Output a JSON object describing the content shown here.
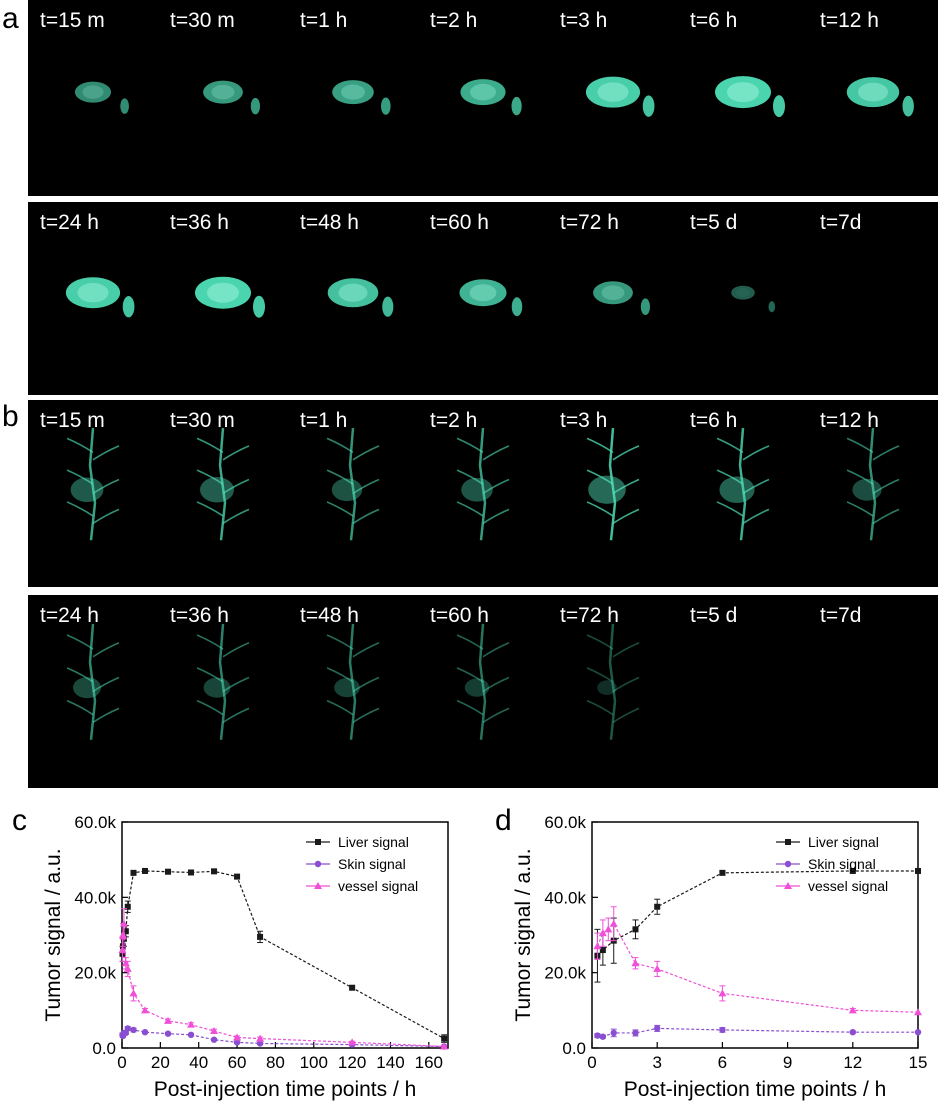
{
  "panels": {
    "a": "a",
    "b": "b",
    "c": "c",
    "d": "d"
  },
  "time_labels": {
    "row1": [
      "t=15 m",
      "t=30 m",
      "t=1 h",
      "t=2 h",
      "t=3 h",
      "t=6 h",
      "t=12 h"
    ],
    "row2": [
      "t=24 h",
      "t=36 h",
      "t=48 h",
      "t=60 h",
      "t=72 h",
      "t=5 d",
      "t=7d"
    ]
  },
  "image_colors": {
    "background": "#000000",
    "fluorescence": "#4fe0b8"
  },
  "fluorescence_levels": {
    "a_row1": [
      0.45,
      0.55,
      0.6,
      0.7,
      0.95,
      1.0,
      0.9
    ],
    "a_row2": [
      0.95,
      1.0,
      0.85,
      0.75,
      0.55,
      0.1,
      0.0
    ],
    "b_row1": [
      0.7,
      0.75,
      0.6,
      0.65,
      0.9,
      0.8,
      0.55
    ],
    "b_row2": [
      0.5,
      0.45,
      0.4,
      0.35,
      0.15,
      0.0,
      0.0
    ]
  },
  "chart_data": [
    {
      "type": "line",
      "panel": "c",
      "xlabel": "Post-injection time points / h",
      "ylabel": "Tumor signal / a.u.",
      "xlim": [
        0,
        170
      ],
      "ylim": [
        0,
        60000
      ],
      "xticks": [
        0,
        20,
        40,
        60,
        80,
        100,
        120,
        140,
        160
      ],
      "yticks": [
        0,
        20000,
        40000,
        60000
      ],
      "ytick_labels": [
        "0.0",
        "20.0k",
        "40.0k",
        "60.0k"
      ],
      "legend_position": "top-right",
      "series": [
        {
          "name": "Liver signal",
          "color": "#1a1a1a",
          "marker": "square",
          "x": [
            0.25,
            0.5,
            1,
            2,
            3,
            6,
            12,
            24,
            36,
            48,
            60,
            72,
            120,
            168
          ],
          "y": [
            25000,
            27000,
            29000,
            31000,
            37500,
            46500,
            47000,
            46800,
            46600,
            46900,
            45500,
            29500,
            16000,
            2500
          ],
          "err": [
            2000,
            2000,
            2000,
            1500,
            1500,
            500,
            400,
            600,
            600,
            500,
            500,
            1500,
            400,
            1000
          ]
        },
        {
          "name": "Skin signal",
          "color": "#8a4fd0",
          "marker": "circle",
          "x": [
            0.25,
            0.5,
            1,
            2,
            3,
            6,
            12,
            24,
            36,
            48,
            60,
            72,
            120,
            168
          ],
          "y": [
            3500,
            3200,
            4000,
            4000,
            5200,
            4800,
            4200,
            3800,
            3500,
            2200,
            1500,
            1200,
            900,
            400
          ],
          "err": [
            500,
            400,
            400,
            400,
            500,
            500,
            300,
            300,
            300,
            300,
            200,
            200,
            200,
            100
          ]
        },
        {
          "name": "vessel signal",
          "color": "#f050d8",
          "marker": "triangle",
          "x": [
            0.25,
            0.5,
            1,
            2,
            3,
            6,
            12,
            24,
            36,
            48,
            60,
            72,
            120,
            168
          ],
          "y": [
            26000,
            30000,
            33000,
            22500,
            21000,
            14500,
            10000,
            7200,
            6200,
            4500,
            2800,
            2500,
            1500,
            400
          ],
          "err": [
            3000,
            3000,
            4000,
            1500,
            2000,
            2000,
            500,
            500,
            500,
            500,
            400,
            400,
            300,
            200
          ]
        }
      ]
    },
    {
      "type": "line",
      "panel": "d",
      "xlabel": "Post-injection time points / h",
      "ylabel": "Tumor signal / a.u.",
      "xlim": [
        0,
        15
      ],
      "ylim": [
        0,
        60000
      ],
      "xticks": [
        0,
        3,
        6,
        9,
        12,
        15
      ],
      "yticks": [
        0,
        20000,
        40000,
        60000
      ],
      "ytick_labels": [
        "0.0",
        "20.0k",
        "40.0k",
        "60.0k"
      ],
      "legend_position": "top-right",
      "series": [
        {
          "name": "Liver signal",
          "color": "#1a1a1a",
          "marker": "square",
          "x": [
            0.25,
            0.5,
            1,
            2,
            3,
            6,
            12,
            15
          ],
          "y": [
            24500,
            26000,
            28500,
            31500,
            37500,
            46500,
            47000,
            47000
          ],
          "err": [
            7000,
            4000,
            6000,
            2500,
            2000,
            500,
            300,
            0
          ]
        },
        {
          "name": "Skin signal",
          "color": "#8a4fd0",
          "marker": "circle",
          "x": [
            0.25,
            0.5,
            1,
            2,
            3,
            6,
            12,
            15
          ],
          "y": [
            3300,
            3000,
            4000,
            4000,
            5200,
            4800,
            4200,
            4200
          ],
          "err": [
            500,
            400,
            1000,
            800,
            800,
            600,
            300,
            0
          ]
        },
        {
          "name": "vessel signal",
          "color": "#f050d8",
          "marker": "triangle",
          "x": [
            0.25,
            0.5,
            0.75,
            1,
            2,
            3,
            6,
            12,
            15
          ],
          "y": [
            27000,
            30500,
            31500,
            33000,
            22500,
            21000,
            14500,
            10000,
            9500
          ],
          "err": [
            3500,
            3500,
            3000,
            4500,
            1500,
            2000,
            2000,
            500,
            0
          ]
        }
      ]
    }
  ]
}
